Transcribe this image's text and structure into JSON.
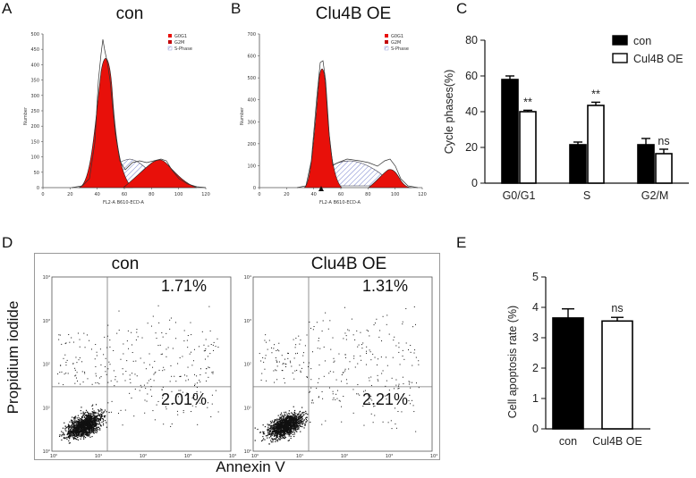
{
  "panel_labels": {
    "a": "A",
    "b": "B",
    "c": "C",
    "d": "D",
    "e": "E"
  },
  "histograms": [
    {
      "title": "con",
      "legend": [
        "G0G1",
        "G2M",
        "S-Phase"
      ],
      "xlabel": "FL2-A B610-ECD-A",
      "ylabel": "Number",
      "yticks": [
        "0",
        "50",
        "100",
        "150",
        "200",
        "250",
        "300",
        "350",
        "400",
        "450",
        "500"
      ],
      "xticks": [
        "0",
        "20",
        "40",
        "60",
        "80",
        "100",
        "120"
      ]
    },
    {
      "title": "Clu4B OE",
      "legend": [
        "G0G1",
        "G2M",
        "S-Phase"
      ],
      "xlabel": "FL2-A B610-ECD-A",
      "ylabel": "Number",
      "yticks": [
        "0",
        "100",
        "200",
        "300",
        "400",
        "500",
        "600",
        "700"
      ],
      "xticks": [
        "0",
        "20",
        "40",
        "60",
        "80",
        "100",
        "120"
      ]
    }
  ],
  "chart_data": [
    {
      "type": "bar",
      "panel": "C",
      "ylabel": "Cycle phases(%)",
      "categories": [
        "G0/G1",
        "S",
        "G2/M"
      ],
      "ylim": [
        0,
        80
      ],
      "yticks": [
        "0",
        "20",
        "40",
        "60",
        "80"
      ],
      "series": [
        {
          "name": "con",
          "values": [
            58,
            21.5,
            21.5
          ],
          "errors": [
            2,
            1.5,
            3.5
          ]
        },
        {
          "name": "Cul4B OE",
          "values": [
            40,
            43.5,
            16.5
          ],
          "errors": [
            0.8,
            1.8,
            2.5
          ]
        }
      ],
      "annotations": [
        "**",
        "**",
        "ns"
      ]
    },
    {
      "type": "bar",
      "panel": "E",
      "ylabel": "Cell apoptosis rate (%)",
      "categories": [
        "con",
        "Cul4B OE"
      ],
      "ylim": [
        0,
        5
      ],
      "yticks": [
        "0",
        "1",
        "2",
        "3",
        "4",
        "5"
      ],
      "values": [
        3.65,
        3.55
      ],
      "errors": [
        0.3,
        0.12
      ],
      "annotations": [
        "",
        "ns"
      ]
    },
    {
      "type": "scatter",
      "panel": "D",
      "xlabel": "Annexin V",
      "ylabel": "Propidium iodide",
      "plots": [
        {
          "title": "con",
          "upper_right": "1.71%",
          "lower_right": "2.01%"
        },
        {
          "title": "Clu4B OE",
          "upper_right": "1.31%",
          "lower_right": "2.21%"
        }
      ],
      "xticks": [
        "10⁰",
        "10¹",
        "10²",
        "10³",
        "10⁴"
      ],
      "yticks": [
        "10⁰",
        "10¹",
        "10²",
        "10³",
        "10⁴"
      ]
    }
  ]
}
